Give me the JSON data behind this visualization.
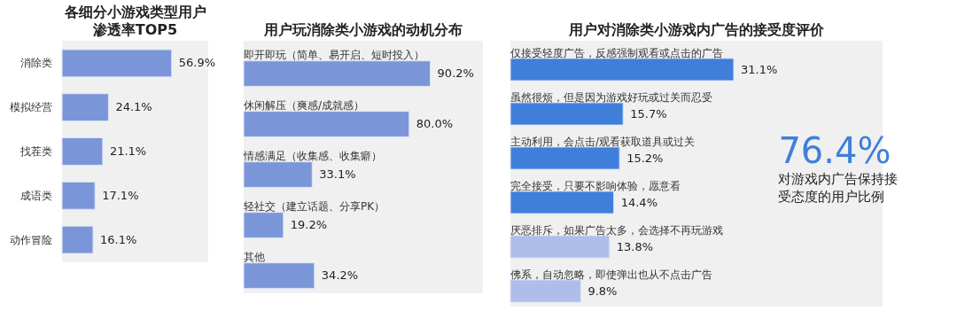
{
  "chart_data": [
    {
      "type": "bar",
      "orientation": "horizontal",
      "title": "各细分小游戏类型用户渗透率TOP5",
      "categories": [
        "消除类",
        "模拟经营",
        "找茬类",
        "成语类",
        "动作冒险"
      ],
      "values": [
        56.9,
        24.1,
        21.1,
        17.1,
        16.1
      ],
      "colors": [
        "#7a96d9",
        "#7a96d9",
        "#7a96d9",
        "#7a96d9",
        "#7a96d9"
      ],
      "value_labels": [
        "56.9%",
        "24.1%",
        "21.1%",
        "17.1%",
        "16.1%"
      ]
    },
    {
      "type": "bar",
      "orientation": "horizontal",
      "title": "用户玩消除类小游戏的动机分布",
      "categories": [
        "即开即玩（简单、易开启、短时投入）",
        "休闲解压（爽感/成就感）",
        "情感满足（收集感、收集癖）",
        "轻社交（建立话题、分享PK）",
        "其他"
      ],
      "values": [
        90.2,
        80.0,
        33.1,
        19.2,
        34.2
      ],
      "colors": [
        "#7a96d9",
        "#7a96d9",
        "#7a96d9",
        "#7a96d9",
        "#7a96d9"
      ],
      "value_labels": [
        "90.2%",
        "80.0%",
        "33.1%",
        "19.2%",
        "34.2%"
      ]
    },
    {
      "type": "bar",
      "orientation": "horizontal",
      "title": "用户对消除类小游戏内广告的接受度评价",
      "categories": [
        "仅接受轻度广告，反感强制观看或点击的广告",
        "虽然很烦，但是因为游戏好玩或过关而忍受",
        "主动利用，会点击/观看获取道具或过关",
        "完全接受，只要不影响体验，愿意看",
        "厌恶排斥，如果广告太多，会选择不再玩游戏",
        "佛系，自动忽略，即使弹出也从不点击广告"
      ],
      "values": [
        31.1,
        15.7,
        15.2,
        14.4,
        13.8,
        9.8
      ],
      "colors": [
        "#3f7fdb",
        "#3f7fdb",
        "#3f7fdb",
        "#3f7fdb",
        "#aebde9",
        "#aebde9"
      ],
      "value_labels": [
        "31.1%",
        "15.7%",
        "15.2%",
        "14.4%",
        "13.8%",
        "9.8%"
      ],
      "annotations": [
        "76.4%",
        "对游戏内广告保持接受态度的用户比例"
      ]
    }
  ]
}
